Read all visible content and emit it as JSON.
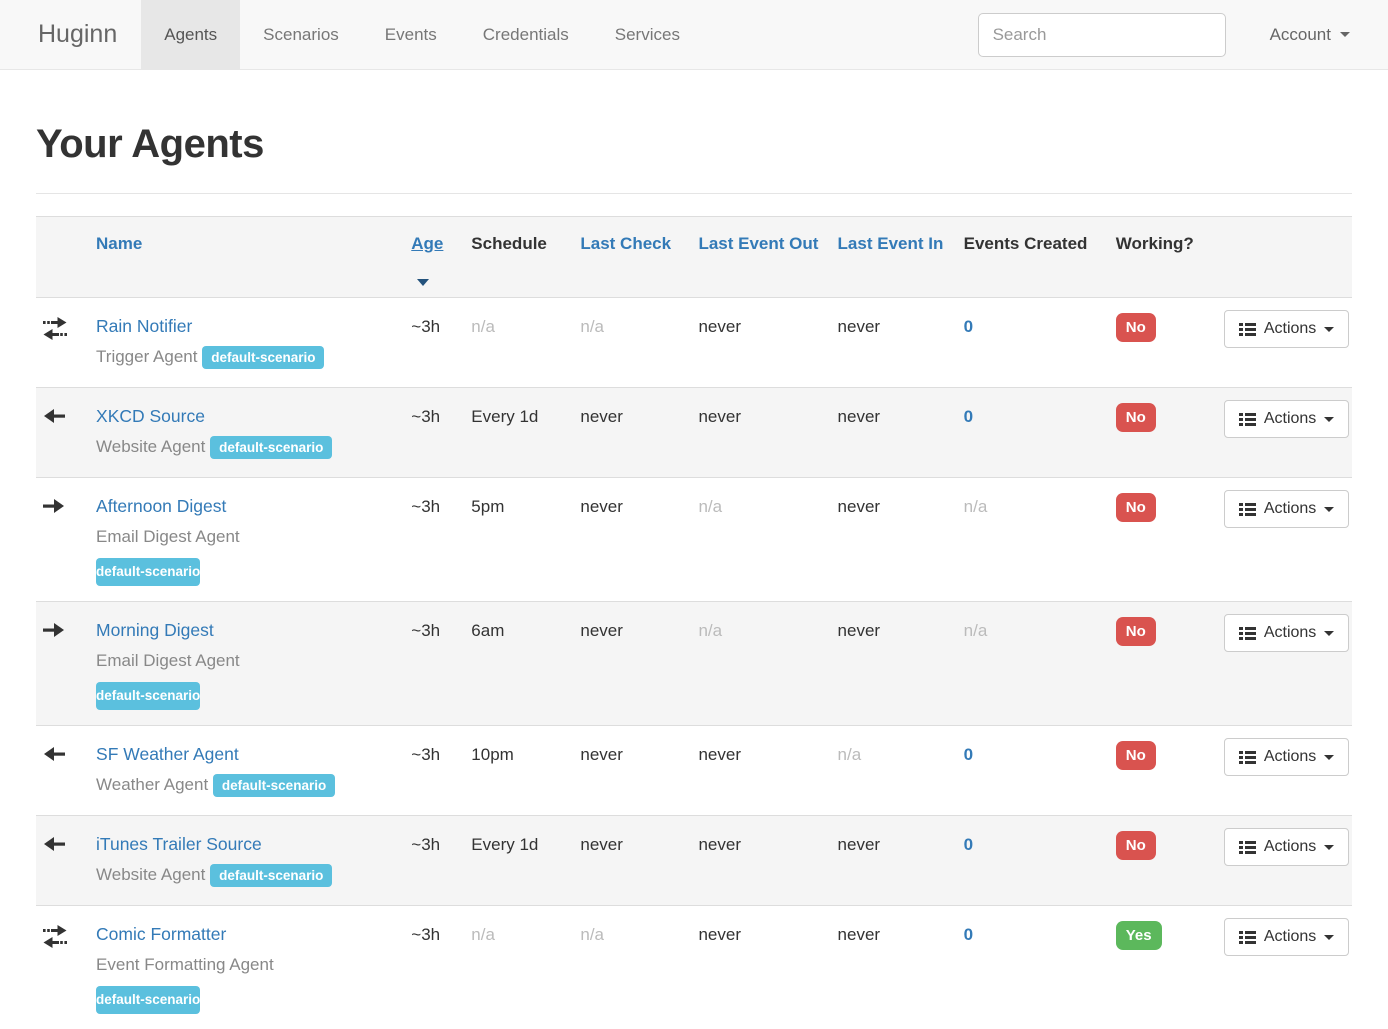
{
  "brand": "Huginn",
  "nav": {
    "items": [
      {
        "label": "Agents",
        "active": true
      },
      {
        "label": "Scenarios",
        "active": false
      },
      {
        "label": "Events",
        "active": false
      },
      {
        "label": "Credentials",
        "active": false
      },
      {
        "label": "Services",
        "active": false
      }
    ],
    "search_placeholder": "Search",
    "account_label": "Account"
  },
  "page": {
    "title": "Your Agents"
  },
  "table": {
    "headers": {
      "name": "Name",
      "age": "Age",
      "schedule": "Schedule",
      "last_check": "Last Check",
      "last_event_out": "Last Event Out",
      "last_event_in": "Last Event In",
      "events_created": "Events Created",
      "working": "Working?"
    },
    "sorted_by": "age",
    "actions_label": "Actions",
    "rows": [
      {
        "direction": "both",
        "name": "Rain Notifier",
        "type": "Trigger Agent",
        "badge": "default-scenario",
        "wrap": false,
        "age": "~3h",
        "schedule": "n/a",
        "last_check": "n/a",
        "last_event_out": "never",
        "last_event_in": "never",
        "events_created": "0",
        "working": "No"
      },
      {
        "direction": "left",
        "name": "XKCD Source",
        "type": "Website Agent",
        "badge": "default-scenario",
        "wrap": false,
        "age": "~3h",
        "schedule": "Every 1d",
        "last_check": "never",
        "last_event_out": "never",
        "last_event_in": "never",
        "events_created": "0",
        "working": "No"
      },
      {
        "direction": "right",
        "name": "Afternoon Digest",
        "type": "Email Digest Agent",
        "badge": "default-scenario",
        "wrap": true,
        "age": "~3h",
        "schedule": "5pm",
        "last_check": "never",
        "last_event_out": "n/a",
        "last_event_in": "never",
        "events_created": "n/a",
        "working": "No"
      },
      {
        "direction": "right",
        "name": "Morning Digest",
        "type": "Email Digest Agent",
        "badge": "default-scenario",
        "wrap": true,
        "age": "~3h",
        "schedule": "6am",
        "last_check": "never",
        "last_event_out": "n/a",
        "last_event_in": "never",
        "events_created": "n/a",
        "working": "No"
      },
      {
        "direction": "left",
        "name": "SF Weather Agent",
        "type": "Weather Agent",
        "badge": "default-scenario",
        "wrap": false,
        "age": "~3h",
        "schedule": "10pm",
        "last_check": "never",
        "last_event_out": "never",
        "last_event_in": "n/a",
        "events_created": "0",
        "working": "No"
      },
      {
        "direction": "left",
        "name": "iTunes Trailer Source",
        "type": "Website Agent",
        "badge": "default-scenario",
        "wrap": false,
        "age": "~3h",
        "schedule": "Every 1d",
        "last_check": "never",
        "last_event_out": "never",
        "last_event_in": "never",
        "events_created": "0",
        "working": "No"
      },
      {
        "direction": "both",
        "name": "Comic Formatter",
        "type": "Event Formatting Agent",
        "badge": "default-scenario",
        "wrap": true,
        "age": "~3h",
        "schedule": "n/a",
        "last_check": "n/a",
        "last_event_out": "never",
        "last_event_in": "never",
        "events_created": "0",
        "working": "Yes"
      }
    ]
  },
  "colors": {
    "link_blue": "#337ab7",
    "scenario_badge": "#5bc0de",
    "working_no": "#d9534f",
    "working_yes": "#5cb85c",
    "muted_text": "#bbbbbb",
    "navbar_bg": "#f8f8f8",
    "stripe_bg": "#f5f5f5"
  }
}
